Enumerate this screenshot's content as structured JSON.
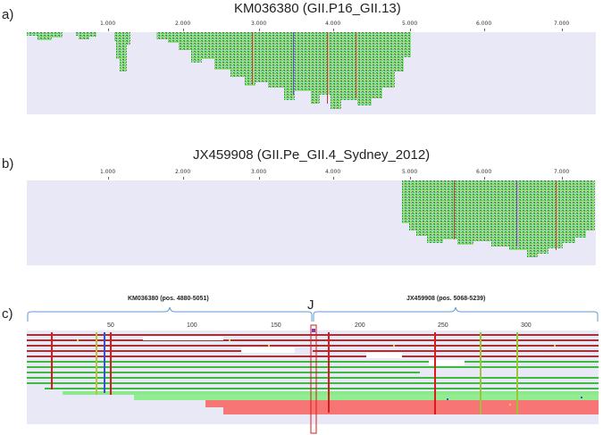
{
  "panel_a": {
    "letter": "a)",
    "title": "KM036380 (GII.P16_GII.13)",
    "ticks": [
      "1.000",
      "2.000",
      "3.000",
      "4.000",
      "5.000",
      "6.000",
      "7.000"
    ]
  },
  "panel_b": {
    "letter": "b)",
    "title": "JX459908 (GII.Pe_GII.4_Sydney_2012)",
    "ticks": [
      "1.000",
      "2.000",
      "3.000",
      "4.000",
      "5.000",
      "6.000",
      "7.000"
    ]
  },
  "panel_c": {
    "letter": "c)",
    "left_label": "KM036380 (pos. 4880-5051)",
    "right_label": "JX459908 (pos. 5068-5239)",
    "junction": "J",
    "ticks": [
      "50",
      "100",
      "150",
      "200",
      "250",
      "300"
    ]
  },
  "colors": {
    "track_bg": "#e8e8f6",
    "read_green": "#90ee90",
    "read_red": "#f87575",
    "read_dark_red": "#a83232",
    "bracket": "#5b9bd5",
    "mismatch_red": "#d81b1b"
  }
}
